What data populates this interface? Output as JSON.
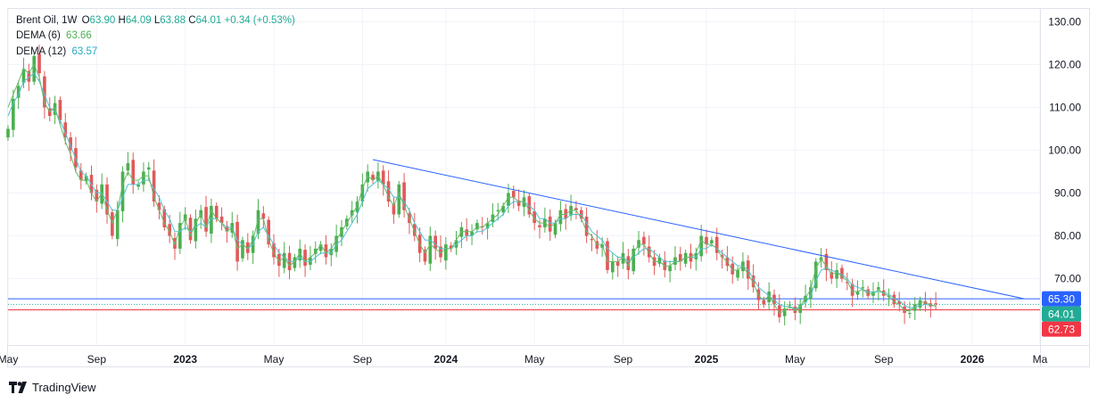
{
  "header": {
    "symbol": "Brent Oil",
    "interval": "1W",
    "o_label": "O",
    "o_value": "63.90",
    "h_label": "H",
    "h_value": "64.09",
    "l_label": "L",
    "l_value": "63.88",
    "c_label": "C",
    "c_value": "64.01",
    "change": "+0.34 (+0.53%)"
  },
  "indicators": [
    {
      "label": "DEMA (6)",
      "value": "63.66",
      "color": "#4caf50"
    },
    {
      "label": "DEMA (12)",
      "value": "63.57",
      "color": "#26c6da"
    }
  ],
  "branding": {
    "name": "TradingView"
  },
  "colors": {
    "up": "#4caf50",
    "down": "#e05a5a",
    "trendline": "#2962ff",
    "dema6": "#66bb6a",
    "dema12": "#4dc3d4",
    "grid": "#f0f3fa",
    "axis_text": "#131722"
  },
  "chart_data": {
    "type": "candlestick",
    "title": "Brent Oil, 1W",
    "y_axis_position": "right",
    "ylim": [
      54.5,
      133
    ],
    "xlim": [
      0,
      198
    ],
    "y_ticks": [
      70,
      80,
      90,
      100,
      110,
      120,
      130
    ],
    "y_tick_labels": [
      "70.00",
      "80.00",
      "90.00",
      "100.00",
      "110.00",
      "120.00",
      "130.00"
    ],
    "x_ticks": [
      {
        "label": "May",
        "week": 0,
        "bold": false
      },
      {
        "label": "Sep",
        "week": 17,
        "bold": false
      },
      {
        "label": "2023",
        "week": 34,
        "bold": true
      },
      {
        "label": "May",
        "week": 51,
        "bold": false
      },
      {
        "label": "Sep",
        "week": 68,
        "bold": false
      },
      {
        "label": "2024",
        "week": 84,
        "bold": true
      },
      {
        "label": "May",
        "week": 101,
        "bold": false
      },
      {
        "label": "Sep",
        "week": 118,
        "bold": false
      },
      {
        "label": "2025",
        "week": 134,
        "bold": true
      },
      {
        "label": "May",
        "week": 151,
        "bold": false
      },
      {
        "label": "Sep",
        "week": 168,
        "bold": false
      },
      {
        "label": "2026",
        "week": 185,
        "bold": true
      },
      {
        "label": "Ma",
        "week": 198,
        "bold": false
      }
    ],
    "price_markers": [
      {
        "label": "65.30",
        "value": 65.3,
        "color": "#2962ff",
        "line_style": "solid"
      },
      {
        "label": "64.01",
        "value": 64.01,
        "color": "#22ab94",
        "line_style": "dotted"
      },
      {
        "label": "62.73",
        "value": 62.73,
        "color": "#f23645",
        "line_style": "solid"
      }
    ],
    "trendline": {
      "start": {
        "week": 70,
        "price": 97.8
      },
      "end": {
        "week": 195,
        "price": 65.3
      }
    },
    "closes": [
      105,
      112,
      115,
      119,
      116,
      122,
      118,
      110,
      108,
      111,
      107,
      103,
      100,
      96,
      93,
      94,
      90,
      88,
      92,
      85,
      80,
      86,
      95,
      97,
      92,
      92,
      95,
      96,
      88,
      86,
      82,
      80,
      77,
      83,
      85,
      79,
      84,
      86,
      81,
      87,
      84,
      83,
      81,
      83,
      74,
      79,
      76,
      80,
      86,
      84,
      78,
      75,
      73,
      76,
      72,
      75,
      77,
      73,
      75,
      77,
      78,
      75,
      77,
      80,
      82,
      84,
      86,
      88,
      92,
      95,
      93,
      95,
      92,
      88,
      85,
      92,
      86,
      83,
      80,
      76,
      74,
      80,
      77,
      75,
      78,
      77,
      79,
      82,
      80,
      81,
      83,
      82,
      83,
      85,
      86,
      87,
      90,
      89,
      87,
      89,
      85,
      83,
      82,
      84,
      81,
      83,
      86,
      84,
      87,
      86,
      84,
      80,
      79,
      77,
      78,
      72,
      74,
      73,
      76,
      72,
      77,
      79,
      78,
      75,
      73,
      75,
      72,
      73,
      75,
      74,
      76,
      74,
      76,
      80,
      78,
      79,
      76,
      75,
      73,
      71,
      72,
      74,
      70,
      68,
      65,
      64,
      67,
      64,
      61,
      63,
      64,
      62,
      64,
      66,
      68,
      74,
      75,
      72,
      70,
      72,
      70,
      69,
      66,
      67,
      68,
      66,
      67,
      68,
      66,
      66,
      64,
      64,
      62,
      62,
      64,
      65,
      64,
      63.5,
      64.01
    ],
    "dema6": [
      110,
      113,
      116,
      119,
      118,
      120,
      117,
      111,
      109,
      110,
      106,
      102,
      99,
      95,
      93,
      93,
      90,
      88,
      90,
      86,
      83,
      86,
      92,
      95,
      93,
      93,
      94,
      94,
      89,
      86,
      83,
      81,
      78,
      82,
      84,
      80,
      83,
      85,
      82,
      86,
      84,
      83,
      81,
      82,
      77,
      78,
      77,
      79,
      84,
      84,
      79,
      76,
      74,
      75,
      73,
      74,
      76,
      74,
      75,
      76,
      78,
      76,
      77,
      79,
      81,
      83,
      85,
      87,
      91,
      94,
      93,
      94,
      92,
      89,
      87,
      90,
      87,
      84,
      81,
      78,
      76,
      78,
      77,
      76,
      77,
      77,
      79,
      81,
      81,
      81,
      82,
      82,
      83,
      84,
      85,
      87,
      89,
      89,
      88,
      88,
      86,
      84,
      83,
      83,
      82,
      83,
      85,
      85,
      86,
      86,
      84,
      81,
      80,
      78,
      78,
      74,
      74,
      74,
      75,
      73,
      76,
      78,
      78,
      76,
      74,
      74,
      73,
      73,
      74,
      74,
      75,
      75,
      76,
      79,
      78,
      78,
      77,
      75,
      74,
      72,
      72,
      73,
      71,
      69,
      66,
      65,
      66,
      64,
      62,
      62.5,
      63.5,
      62.5,
      63.5,
      65.5,
      67.5,
      72.5,
      74.5,
      73,
      71,
      71.5,
      70.5,
      69.5,
      67,
      67,
      67.5,
      66.5,
      66.5,
      67.5,
      66.5,
      66,
      64.5,
      64,
      62.5,
      62.5,
      63.5,
      64.5,
      64.5,
      63.8,
      63.66
    ],
    "dema12": [
      108,
      111,
      113,
      116,
      117,
      118,
      116,
      113,
      110,
      109,
      107,
      104,
      101,
      98,
      95,
      94,
      92,
      90,
      90,
      88,
      86,
      86,
      89,
      92,
      92,
      92,
      93,
      93,
      91,
      89,
      86,
      84,
      81,
      81,
      82,
      81,
      82,
      83,
      82,
      84,
      84,
      83,
      82,
      82,
      79,
      78,
      77,
      78,
      81,
      82,
      80,
      78,
      76,
      75,
      74,
      74,
      75,
      74,
      74,
      75,
      76,
      76,
      76,
      78,
      79,
      81,
      83,
      85,
      88,
      91,
      92,
      93,
      92,
      91,
      89,
      89,
      88,
      86,
      83,
      81,
      79,
      79,
      78,
      77,
      77,
      77,
      78,
      79,
      80,
      80,
      81,
      81,
      82,
      83,
      84,
      85,
      87,
      88,
      88,
      88,
      87,
      86,
      84,
      84,
      83,
      83,
      84,
      84,
      85,
      85,
      85,
      83,
      81,
      80,
      79,
      77,
      76,
      75,
      75,
      74,
      75,
      76,
      77,
      77,
      76,
      75,
      74,
      74,
      74,
      74,
      75,
      75,
      75,
      77,
      77,
      78,
      77,
      76,
      75,
      74,
      73,
      73,
      72,
      70,
      68,
      67,
      66,
      65,
      64,
      63.5,
      63.5,
      63,
      63.5,
      64.5,
      66,
      69.5,
      72,
      72.5,
      72,
      71.5,
      71,
      70,
      68.5,
      68,
      67.5,
      67,
      66.8,
      67,
      66.8,
      66.4,
      65.4,
      64.8,
      63.8,
      63.2,
      63.3,
      63.7,
      64,
      63.8,
      63.57
    ]
  }
}
